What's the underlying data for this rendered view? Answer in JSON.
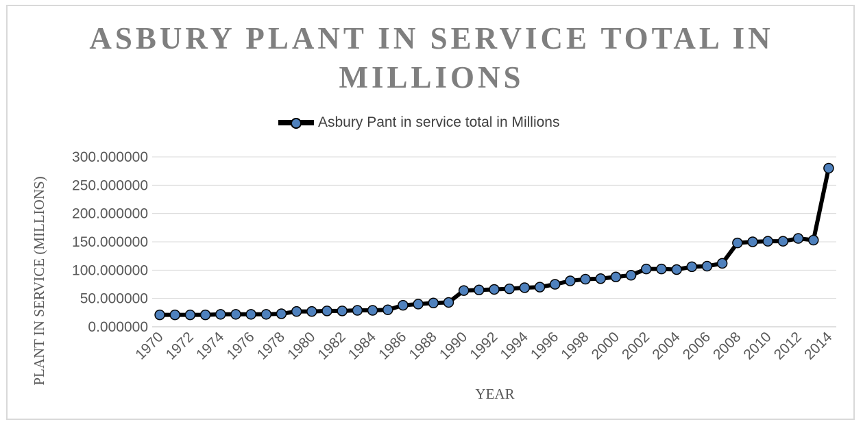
{
  "chart_data": {
    "type": "line",
    "title": "ASBURY PLANT IN SERVICE TOTAL IN MILLIONS",
    "xlabel": "YEAR",
    "ylabel": "PLANT IN SERVICE (MILLIONS)",
    "ylim": [
      0,
      300
    ],
    "y_ticks": [
      "0.000000",
      "50.000000",
      "100.000000",
      "150.000000",
      "200.000000",
      "250.000000",
      "300.000000"
    ],
    "x_tick_labels": [
      "1970",
      "1972",
      "1974",
      "1976",
      "1978",
      "1980",
      "1982",
      "1984",
      "1986",
      "1988",
      "1990",
      "1992",
      "1994",
      "1996",
      "1998",
      "2000",
      "2002",
      "2004",
      "2006",
      "2008",
      "2010",
      "2012",
      "2014"
    ],
    "grid": true,
    "legend_position": "top",
    "categories": [
      1970,
      1971,
      1972,
      1973,
      1974,
      1975,
      1976,
      1977,
      1978,
      1979,
      1980,
      1981,
      1982,
      1983,
      1984,
      1985,
      1986,
      1987,
      1988,
      1989,
      1990,
      1991,
      1992,
      1993,
      1994,
      1995,
      1996,
      1997,
      1998,
      1999,
      2000,
      2001,
      2002,
      2003,
      2004,
      2005,
      2006,
      2007,
      2008,
      2009,
      2010,
      2011,
      2012,
      2013,
      2014
    ],
    "series": [
      {
        "name": "Asbury Pant in service total in Millions",
        "color": "#4f81bd",
        "line_color": "#000000",
        "values": [
          21,
          21,
          21,
          21,
          22,
          22,
          22,
          22,
          23,
          27,
          27,
          28,
          28,
          29,
          29,
          30,
          38,
          40,
          42,
          43,
          64,
          65,
          66,
          67,
          69,
          70,
          75,
          81,
          84,
          85,
          88,
          91,
          102,
          102,
          101,
          106,
          107,
          112,
          148,
          150,
          151,
          151,
          156,
          153,
          280
        ]
      }
    ],
    "colors": {
      "marker_fill": "#4f81bd",
      "line": "#000000",
      "title": "#7f7f7f",
      "grid": "#d9d9d9"
    }
  }
}
